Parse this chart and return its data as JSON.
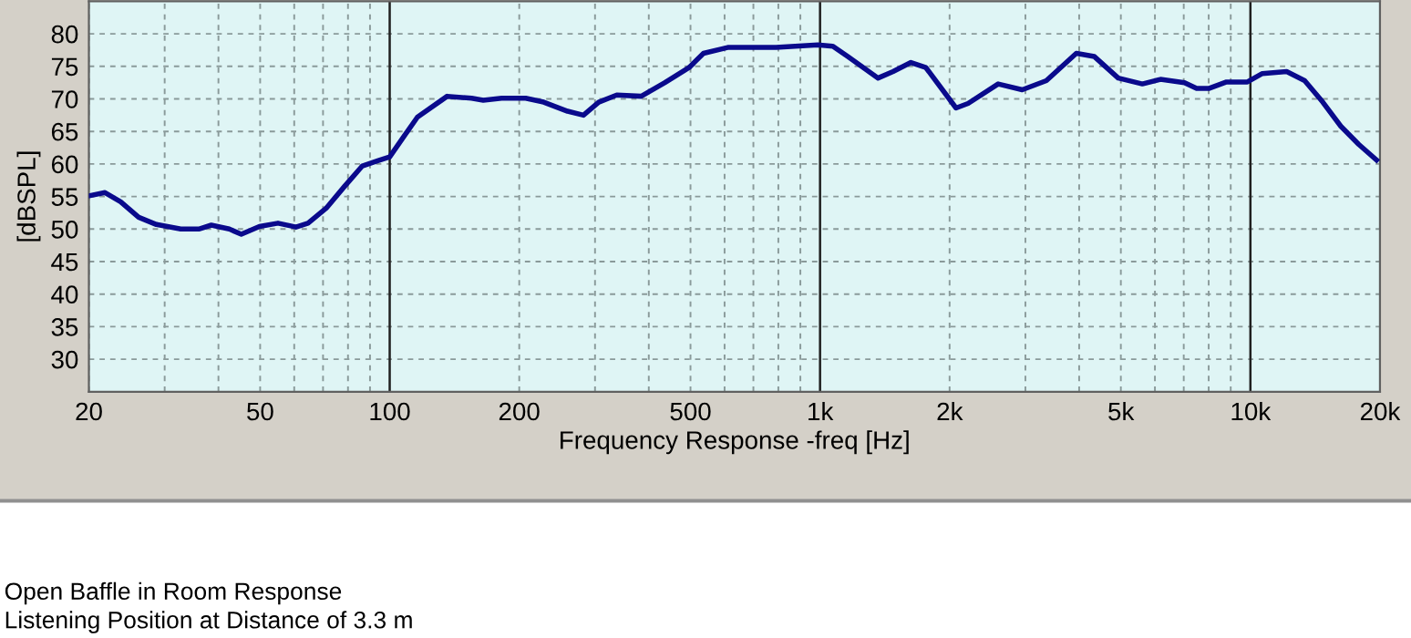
{
  "chart_data": {
    "type": "line",
    "xlabel": "Frequency Response -freq [Hz]",
    "ylabel": "[dBSPL]",
    "log": "x",
    "xlim": [
      20,
      20000
    ],
    "ylim": [
      25,
      85
    ],
    "xticks": [
      20,
      {
        "value": 30,
        "label": null
      },
      {
        "value": 40,
        "label": null
      },
      50,
      {
        "value": 60,
        "label": null
      },
      {
        "value": 70,
        "label": null
      },
      {
        "value": 80,
        "label": null
      },
      {
        "value": 90,
        "label": null
      },
      100,
      200,
      {
        "value": 300,
        "label": null
      },
      {
        "value": 400,
        "label": null
      },
      500,
      {
        "value": 600,
        "label": null
      },
      {
        "value": 700,
        "label": null
      },
      {
        "value": 800,
        "label": null
      },
      {
        "value": 900,
        "label": null
      },
      {
        "value": 1000,
        "label": "1k"
      },
      {
        "value": 2000,
        "label": "2k"
      },
      {
        "value": 3000,
        "label": null
      },
      {
        "value": 4000,
        "label": null
      },
      {
        "value": 5000,
        "label": "5k"
      },
      {
        "value": 6000,
        "label": null
      },
      {
        "value": 7000,
        "label": null
      },
      {
        "value": 8000,
        "label": null
      },
      {
        "value": 9000,
        "label": null
      },
      {
        "value": 10000,
        "label": "10k"
      },
      {
        "value": 20000,
        "label": "20k"
      }
    ],
    "yticks": [
      30,
      35,
      40,
      45,
      50,
      55,
      60,
      65,
      70,
      75,
      80
    ],
    "grid": true,
    "line_style": "solid",
    "marker": "none",
    "series": [
      {
        "color": "#0a0a8c",
        "x": [
          20,
          21.8,
          23.7,
          26.1,
          28.7,
          32.7,
          36,
          38.5,
          42.4,
          45.2,
          49.8,
          55,
          60.6,
          64.6,
          71.2,
          78.4,
          86.4,
          93.8,
          100,
          107,
          116,
          136,
          155,
          165,
          182,
          207,
          228,
          259,
          282,
          306,
          337,
          384,
          436,
          496,
          536,
          610,
          790,
          988,
          1071,
          1160,
          1364,
          1478,
          1626,
          1762,
          2070,
          2208,
          2593,
          2950,
          3356,
          3940,
          4340,
          4930,
          5610,
          6180,
          7030,
          7500,
          8000,
          8800,
          9840,
          10660,
          12140,
          13370,
          14730,
          16220,
          17860,
          19640
        ],
        "values": [
          55.1,
          55.6,
          54.2,
          51.8,
          50.7,
          50,
          50,
          50.6,
          50,
          49.2,
          50.4,
          50.9,
          50.3,
          50.9,
          53.2,
          56.5,
          59.7,
          60.5,
          61.1,
          63.9,
          67.2,
          70.4,
          70.1,
          69.8,
          70.1,
          70.1,
          69.5,
          68.1,
          67.5,
          69.5,
          70.6,
          70.4,
          72.5,
          74.8,
          77,
          77.9,
          77.9,
          78.3,
          78.1,
          76.5,
          73.2,
          74.2,
          75.6,
          74.8,
          68.6,
          69.3,
          72.3,
          71.4,
          72.8,
          77,
          76.5,
          73.2,
          72.3,
          73,
          72.5,
          71.6,
          71.6,
          72.6,
          72.6,
          73.9,
          74.2,
          72.8,
          69.5,
          65.8,
          63,
          60.6
        ]
      }
    ],
    "annotations": [
      "Open Baffle in Room Response",
      "Listening Position at Distance of 3.3 m"
    ]
  }
}
